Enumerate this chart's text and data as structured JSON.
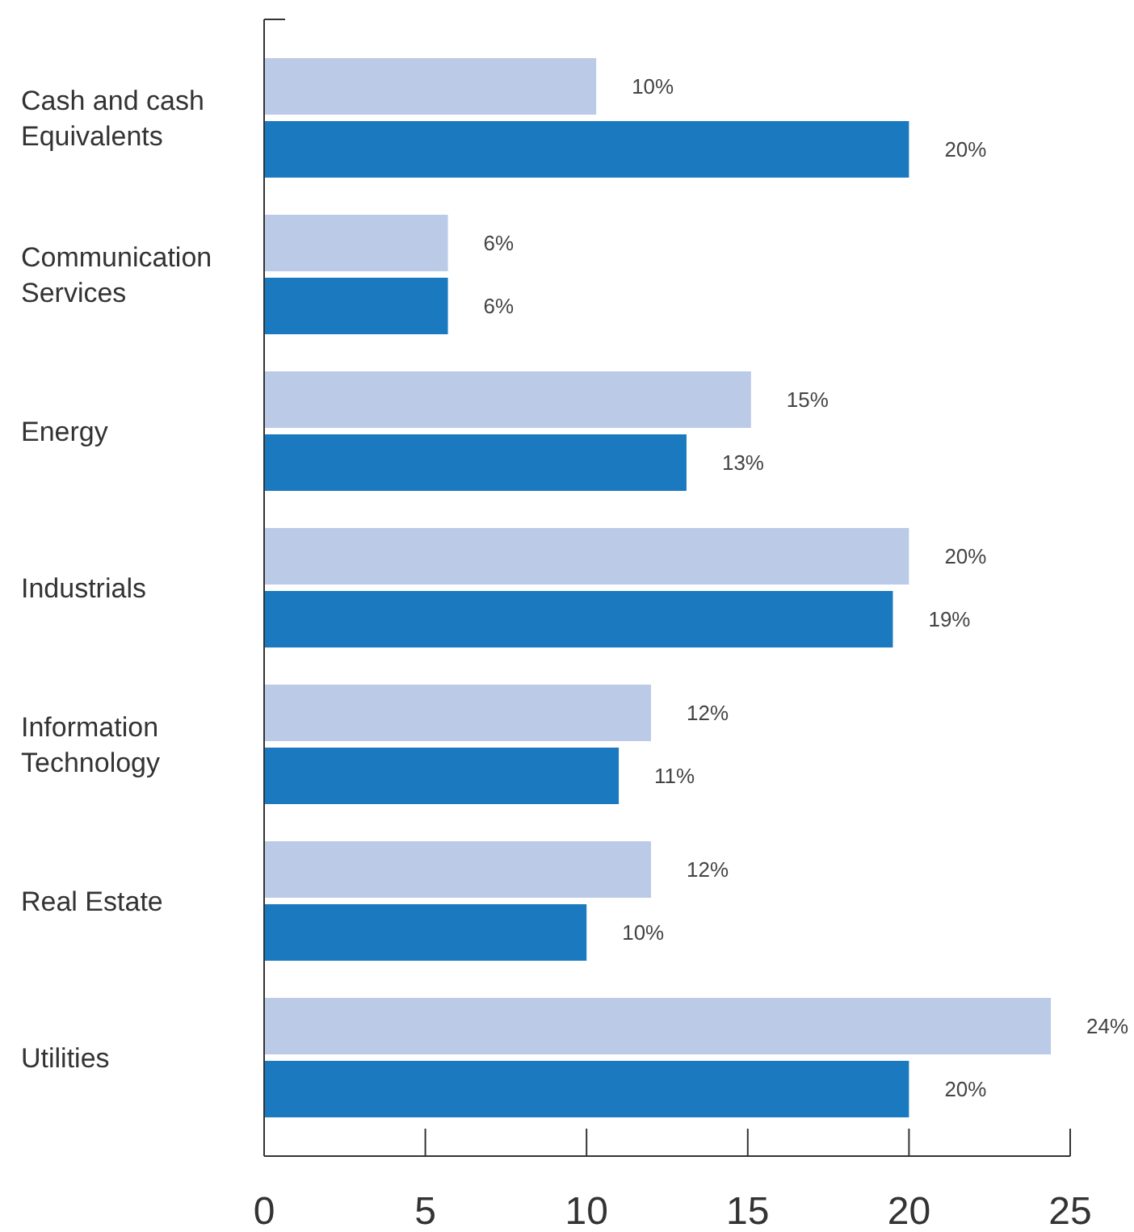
{
  "chart_data": {
    "type": "bar",
    "orientation": "horizontal",
    "categories": [
      "Cash and cash Equivalents",
      "Communication Services",
      "Energy",
      "Industrials",
      "Information Technology",
      "Real Estate",
      "Utilities"
    ],
    "series": [
      {
        "color": "#bbcae7",
        "values": [
          10.3,
          5.7,
          15.1,
          20,
          12,
          12,
          24.4
        ],
        "value_labels": [
          "10%",
          "6%",
          "15%",
          "20%",
          "12%",
          "12%",
          "24%"
        ]
      },
      {
        "color": "#1a79bf",
        "values": [
          20,
          5.7,
          13.1,
          19.5,
          11,
          10,
          20
        ],
        "value_labels": [
          "20%",
          "6%",
          "13%",
          "19%",
          "11%",
          "10%",
          "20%"
        ]
      }
    ],
    "xlim": [
      0,
      25
    ],
    "xticks": [
      0,
      5,
      10,
      15,
      20,
      25
    ]
  }
}
